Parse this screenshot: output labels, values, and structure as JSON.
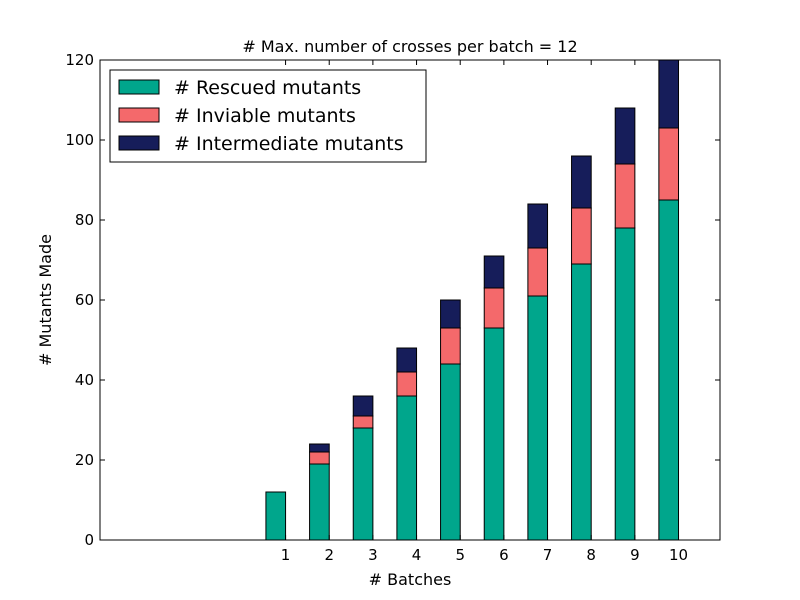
{
  "chart_data": {
    "type": "bar",
    "stacked": true,
    "title": "# Max. number of crosses per batch = 12",
    "xlabel": "# Batches",
    "ylabel": "# Mutants Made",
    "categories": [
      "1",
      "2",
      "3",
      "4",
      "5",
      "6",
      "7",
      "8",
      "9",
      "10"
    ],
    "xticks": [
      "1",
      "2",
      "3",
      "4",
      "5",
      "6",
      "7",
      "8",
      "9",
      "10"
    ],
    "yticks": [
      "0",
      "20",
      "40",
      "60",
      "80",
      "100",
      "120"
    ],
    "ylim": [
      0,
      120
    ],
    "grid": false,
    "legend_position": "top-left",
    "series": [
      {
        "name": "# Rescued mutants",
        "color": "#00a68c",
        "values": [
          12,
          19,
          28,
          36,
          44,
          53,
          61,
          69,
          78,
          85
        ]
      },
      {
        "name": "# Inviable mutants",
        "color": "#f4696b",
        "values": [
          0,
          3,
          3,
          6,
          9,
          10,
          12,
          14,
          16,
          18
        ]
      },
      {
        "name": "# Intermediate mutants",
        "color": "#161d5a",
        "values": [
          0,
          2,
          5,
          6,
          7,
          8,
          11,
          13,
          14,
          17
        ]
      }
    ]
  }
}
